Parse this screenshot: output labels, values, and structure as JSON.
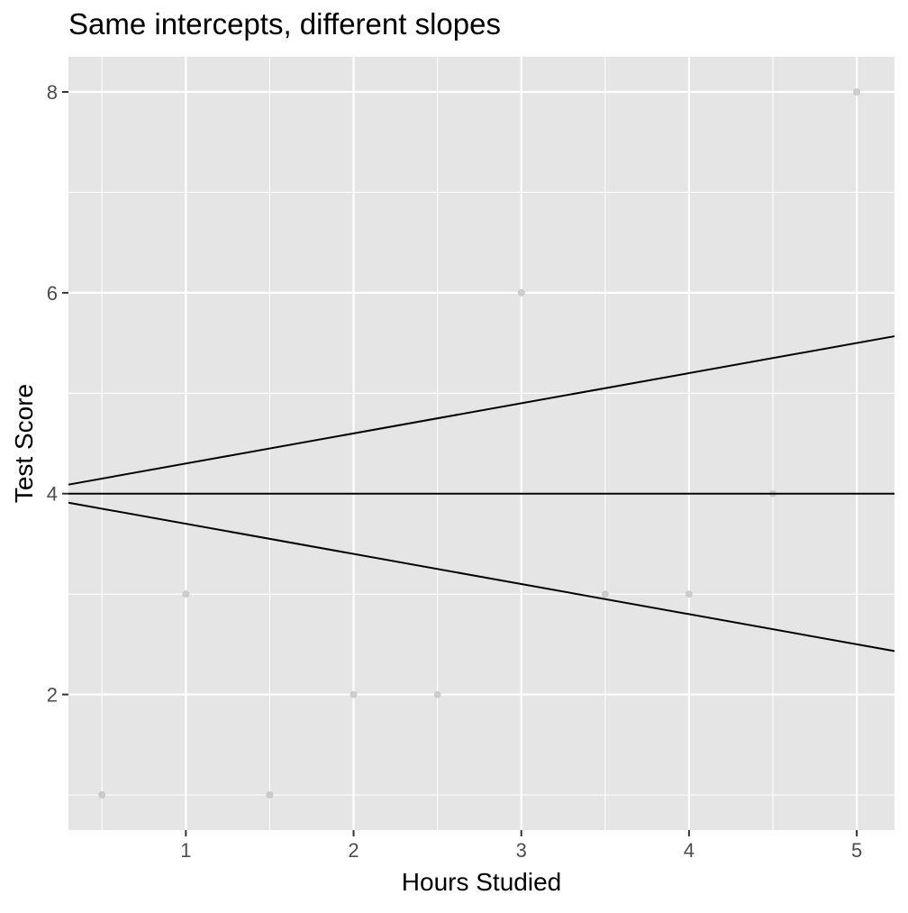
{
  "chart_data": {
    "type": "scatter",
    "title": "Same intercepts, different slopes",
    "xlabel": "Hours Studied",
    "ylabel": "Test Score",
    "xlim": [
      0.3,
      5.225
    ],
    "ylim": [
      0.65,
      8.35
    ],
    "x_ticks": [
      1,
      2,
      3,
      4,
      5
    ],
    "y_ticks": [
      2,
      4,
      6,
      8
    ],
    "x_minor_ticks": [
      0.5,
      1.5,
      2.5,
      3.5,
      4.5
    ],
    "y_minor_ticks": [
      1,
      3,
      5,
      7
    ],
    "grid": true,
    "legend": "none",
    "points": {
      "x": [
        0.5,
        1,
        1.5,
        2,
        2.5,
        3,
        3.5,
        4,
        4.5,
        5
      ],
      "y": [
        1,
        3,
        1,
        2,
        2,
        6,
        3,
        3,
        4,
        8
      ],
      "color": "#bfbfbf"
    },
    "lines": [
      {
        "intercept": 4,
        "slope": 0.3
      },
      {
        "intercept": 4,
        "slope": 0
      },
      {
        "intercept": 4,
        "slope": -0.3
      }
    ],
    "colors": {
      "panel_background": "#e5e5e5",
      "grid": "#ffffff",
      "line": "#000000",
      "axis_text": "#4d4d4d"
    }
  }
}
